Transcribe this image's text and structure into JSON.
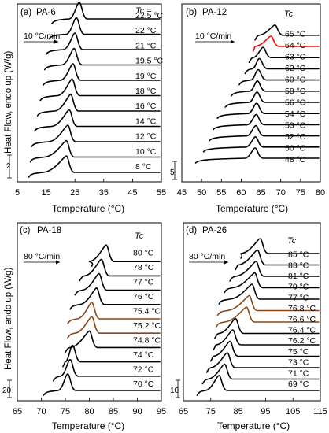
{
  "figure": {
    "ylabel": "Heat Flow, endo up (W/g)",
    "xlabel": "Temperature (°C)"
  },
  "chart_data": [
    {
      "type": "line",
      "panel": "(a)",
      "title": "PA-6",
      "rate_label": "10 °C/min",
      "tc_header": "Tc =",
      "xlabel": "Temperature (°C)",
      "ylabel": "Heat Flow, endo up (W/g)",
      "xlim": [
        5,
        55
      ],
      "xticks": [
        5,
        15,
        25,
        35,
        45,
        55
      ],
      "scale_bar": "2",
      "series": [
        {
          "name": "8 °C",
          "peak": 22.0,
          "onset": 14.0,
          "start": 9.0,
          "color": "#000000"
        },
        {
          "name": "10 °C",
          "peak": 22.0,
          "onset": 14.5,
          "start": 9.5,
          "color": "#000000"
        },
        {
          "name": "12 °C",
          "peak": 22.5,
          "onset": 16.0,
          "start": 10.0,
          "color": "#000000"
        },
        {
          "name": "14 °C",
          "peak": 23.0,
          "onset": 17.0,
          "start": 11.0,
          "color": "#000000"
        },
        {
          "name": "16 °C",
          "peak": 23.5,
          "onset": 18.0,
          "start": 12.0,
          "color": "#000000"
        },
        {
          "name": "18 °C",
          "peak": 24.0,
          "onset": 19.0,
          "start": 13.0,
          "color": "#000000"
        },
        {
          "name": "19 °C",
          "peak": 24.3,
          "onset": 20.0,
          "start": 14.0,
          "color": "#000000"
        },
        {
          "name": "19.5 °C",
          "peak": 24.7,
          "onset": 20.5,
          "start": 14.5,
          "color": "#000000"
        },
        {
          "name": "21 °C",
          "peak": 25.0,
          "onset": 21.0,
          "start": 15.0,
          "color": "#000000"
        },
        {
          "name": "22 °C",
          "peak": 25.5,
          "onset": 22.0,
          "start": 16.0,
          "color": "#000000"
        },
        {
          "name": "22.5 °C",
          "peak": 26.5,
          "onset": 23.0,
          "start": 17.0,
          "color": "#000000"
        }
      ]
    },
    {
      "type": "line",
      "panel": "(b)",
      "title": "PA-12",
      "rate_label": "10 °C/min",
      "tc_header": "Tc",
      "xlabel": "Temperature (°C)",
      "xlim": [
        45,
        80
      ],
      "xticks": [
        45,
        50,
        55,
        60,
        65,
        70,
        75,
        80
      ],
      "scale_bar": "5",
      "series": [
        {
          "name": "48 °C",
          "peak": 63.5,
          "onset": 61.0,
          "start": 48.5,
          "color": "#000000"
        },
        {
          "name": "50 °C",
          "peak": 63.6,
          "onset": 61.2,
          "start": 50.5,
          "color": "#000000"
        },
        {
          "name": "52 °C",
          "peak": 63.7,
          "onset": 61.4,
          "start": 52.0,
          "color": "#000000"
        },
        {
          "name": "53 °C",
          "peak": 63.8,
          "onset": 61.6,
          "start": 53.0,
          "color": "#000000"
        },
        {
          "name": "54 °C",
          "peak": 63.9,
          "onset": 61.8,
          "start": 54.0,
          "color": "#000000"
        },
        {
          "name": "56 °C",
          "peak": 64.0,
          "onset": 62.0,
          "start": 56.0,
          "color": "#000000"
        },
        {
          "name": "58 °C",
          "peak": 64.1,
          "onset": 62.2,
          "start": 57.5,
          "color": "#000000"
        },
        {
          "name": "60 °C",
          "peak": 64.3,
          "onset": 62.5,
          "start": 59.5,
          "color": "#000000"
        },
        {
          "name": "62 °C",
          "peak": 64.6,
          "onset": 62.8,
          "start": 61.0,
          "color": "#000000"
        },
        {
          "name": "63 °C",
          "peak": 65.5,
          "onset": 63.0,
          "start": 62.0,
          "color": "#000000"
        },
        {
          "name": "64 °C",
          "peak": 67.5,
          "onset": 63.5,
          "start": 63.0,
          "color": "#ff0000"
        },
        {
          "name": "65 °C",
          "peak": 68.5,
          "onset": 64.5,
          "start": 63.5,
          "color": "#000000"
        }
      ]
    },
    {
      "type": "line",
      "panel": "(c)",
      "title": "PA-18",
      "rate_label": "80 °C/min",
      "tc_header": "Tc",
      "xlabel": "Temperature (°C)",
      "xlim": [
        65,
        95
      ],
      "xticks": [
        65,
        70,
        75,
        80,
        85,
        90,
        95
      ],
      "scale_bar": "20",
      "series": [
        {
          "name": "70 °C",
          "peak": 75.5,
          "onset": 73.5,
          "start": 70.5,
          "color": "#000000"
        },
        {
          "name": "72 °C",
          "peak": 76.0,
          "onset": 74.0,
          "start": 72.5,
          "color": "#000000"
        },
        {
          "name": "74 °C",
          "peak": 76.5,
          "onset": 75.0,
          "start": 74.5,
          "color": "#000000"
        },
        {
          "name": "74.8 °C",
          "peak": 80.0,
          "onset": 76.0,
          "start": 75.0,
          "color": "#000000"
        },
        {
          "name": "75.2 °C",
          "peak": 80.5,
          "onset": 77.0,
          "start": 75.5,
          "color": "#8b4513"
        },
        {
          "name": "75.4 °C",
          "peak": 80.5,
          "onset": 77.5,
          "start": 75.5,
          "color": "#8b4513"
        },
        {
          "name": "76 °C",
          "peak": 81.5,
          "onset": 78.0,
          "start": 76.0,
          "color": "#000000"
        },
        {
          "name": "77 °C",
          "peak": 82.0,
          "onset": 78.5,
          "start": 77.0,
          "color": "#000000"
        },
        {
          "name": "78 °C",
          "peak": 82.5,
          "onset": 79.0,
          "start": 78.0,
          "color": "#000000"
        },
        {
          "name": "80 °C",
          "peak": 83.5,
          "onset": 80.0,
          "start": 80.5,
          "color": "#000000"
        }
      ]
    },
    {
      "type": "line",
      "panel": "(d)",
      "title": "PA-26",
      "rate_label": "80 °C/min",
      "tc_header": "Tc",
      "xlabel": "Temperature (°C)",
      "xlim": [
        65,
        115
      ],
      "xticks": [
        65,
        75,
        85,
        95,
        105,
        115
      ],
      "scale_bar": "10",
      "series": [
        {
          "name": "69 °C",
          "peak": 78.0,
          "onset": 73.0,
          "start": 70.0,
          "color": "#000000"
        },
        {
          "name": "71 °C",
          "peak": 80.0,
          "onset": 74.0,
          "start": 72.0,
          "color": "#000000"
        },
        {
          "name": "73 °C",
          "peak": 81.0,
          "onset": 75.0,
          "start": 73.5,
          "color": "#000000"
        },
        {
          "name": "75 °C",
          "peak": 82.0,
          "onset": 76.0,
          "start": 75.0,
          "color": "#000000"
        },
        {
          "name": "76.2 °C",
          "peak": 83.0,
          "onset": 77.0,
          "start": 76.0,
          "color": "#000000"
        },
        {
          "name": "76.4 °C",
          "peak": 84.0,
          "onset": 78.0,
          "start": 76.5,
          "color": "#000000"
        },
        {
          "name": "76.6 °C",
          "peak": 88.0,
          "onset": 80.0,
          "start": 77.0,
          "color": "#8b4513"
        },
        {
          "name": "76.8 °C",
          "peak": 89.0,
          "onset": 81.0,
          "start": 77.5,
          "color": "#8b4513"
        },
        {
          "name": "77 °C",
          "peak": 90.0,
          "onset": 82.0,
          "start": 78.0,
          "color": "#000000"
        },
        {
          "name": "79 °C",
          "peak": 91.0,
          "onset": 83.0,
          "start": 80.0,
          "color": "#000000"
        },
        {
          "name": "81 °C",
          "peak": 91.5,
          "onset": 84.0,
          "start": 82.0,
          "color": "#000000"
        },
        {
          "name": "83 °C",
          "peak": 92.0,
          "onset": 85.0,
          "start": 84.0,
          "color": "#000000"
        },
        {
          "name": "85 °C",
          "peak": 93.0,
          "onset": 86.0,
          "start": 86.0,
          "color": "#000000"
        }
      ]
    }
  ]
}
